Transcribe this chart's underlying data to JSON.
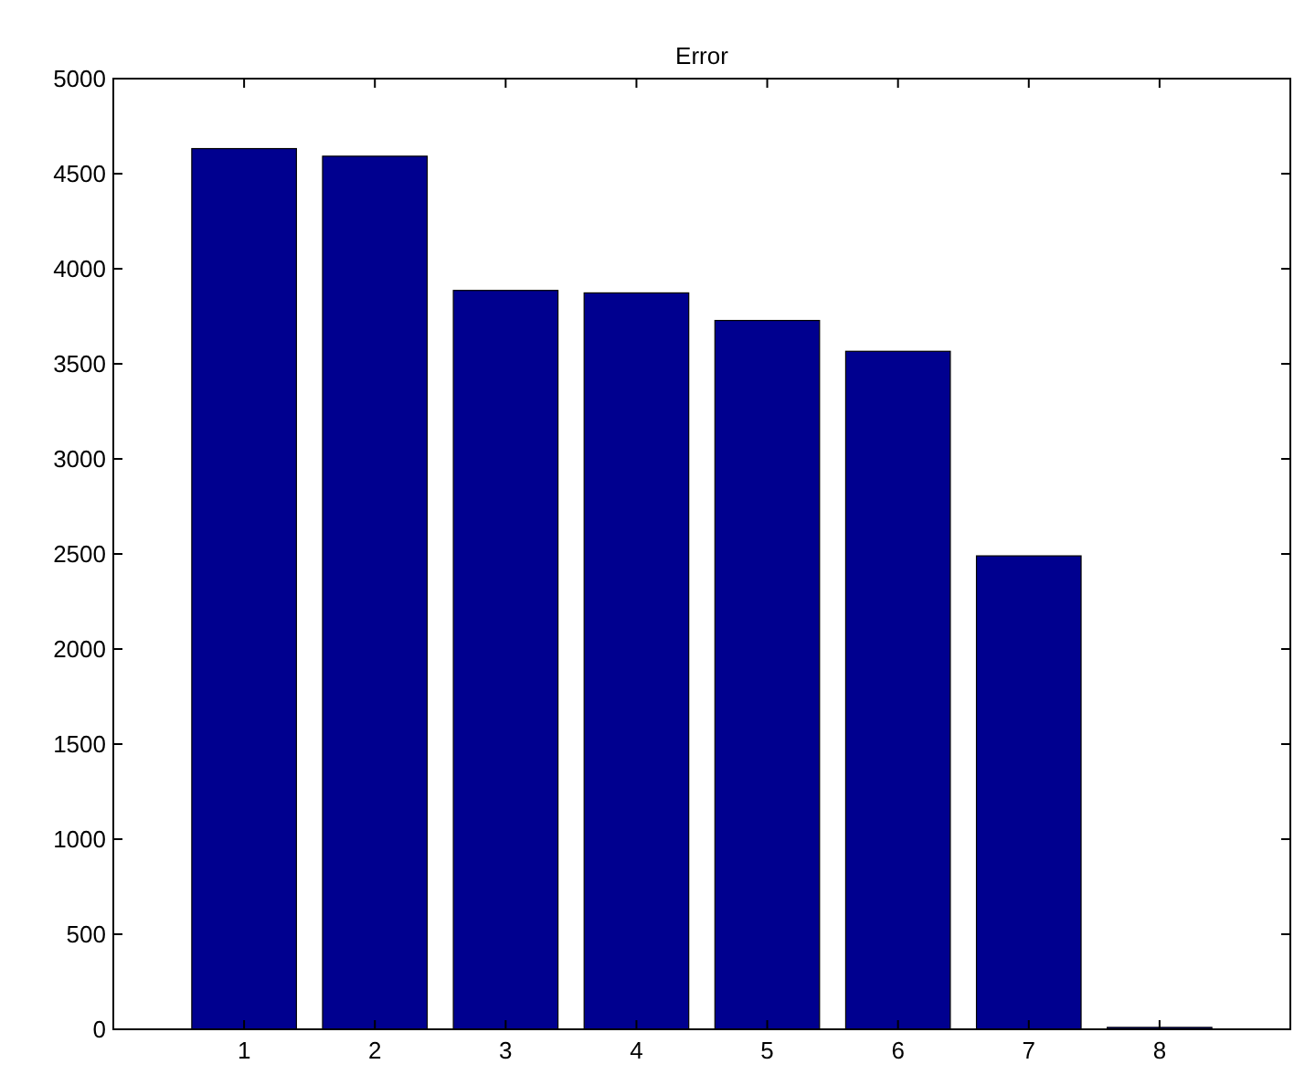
{
  "chart_data": {
    "type": "bar",
    "title": "Error",
    "categories": [
      "1",
      "2",
      "3",
      "4",
      "5",
      "6",
      "7",
      "8"
    ],
    "values": [
      4632,
      4592,
      3886,
      3873,
      3728,
      3566,
      2490,
      10
    ],
    "color": "#00008f",
    "ylim": [
      0,
      5000
    ],
    "yticks": [
      0,
      500,
      1000,
      1500,
      2000,
      2500,
      3000,
      3500,
      4000,
      4500,
      5000
    ],
    "grid": false
  }
}
